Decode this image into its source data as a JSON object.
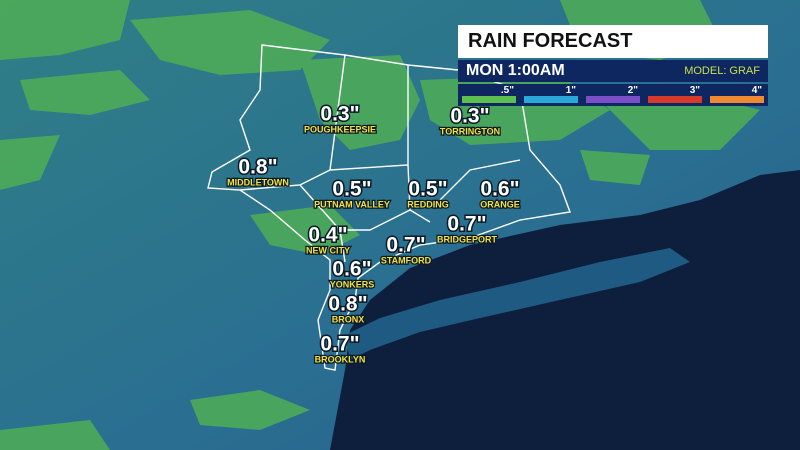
{
  "header": {
    "title": "RAIN FORECAST",
    "time": "MON 1:00AM",
    "model": "MODEL: GRAF"
  },
  "legend": [
    {
      "label": ".5\"",
      "color": "#5cbf4e"
    },
    {
      "label": "1\"",
      "color": "#2aa8d8"
    },
    {
      "label": "2\"",
      "color": "#7b4fc7"
    },
    {
      "label": "3\"",
      "color": "#d83a2a"
    },
    {
      "label": "4\"",
      "color": "#ef8a30"
    }
  ],
  "locations": [
    {
      "name": "POUGHKEEPSIE",
      "amount": "0.3\""
    },
    {
      "name": "TORRINGTON",
      "amount": "0.3\""
    },
    {
      "name": "MIDDLETOWN",
      "amount": "0.8\""
    },
    {
      "name": "PUTNAM VALLEY",
      "amount": "0.5\""
    },
    {
      "name": "REDDING",
      "amount": "0.5\""
    },
    {
      "name": "ORANGE",
      "amount": "0.6\""
    },
    {
      "name": "BRIDGEPORT",
      "amount": "0.7\""
    },
    {
      "name": "NEW CITY",
      "amount": "0.4\""
    },
    {
      "name": "STAMFORD",
      "amount": "0.7\""
    },
    {
      "name": "YONKERS",
      "amount": "0.6\""
    },
    {
      "name": "BRONX",
      "amount": "0.8\""
    },
    {
      "name": "BROOKLYN",
      "amount": "0.7\""
    }
  ]
}
